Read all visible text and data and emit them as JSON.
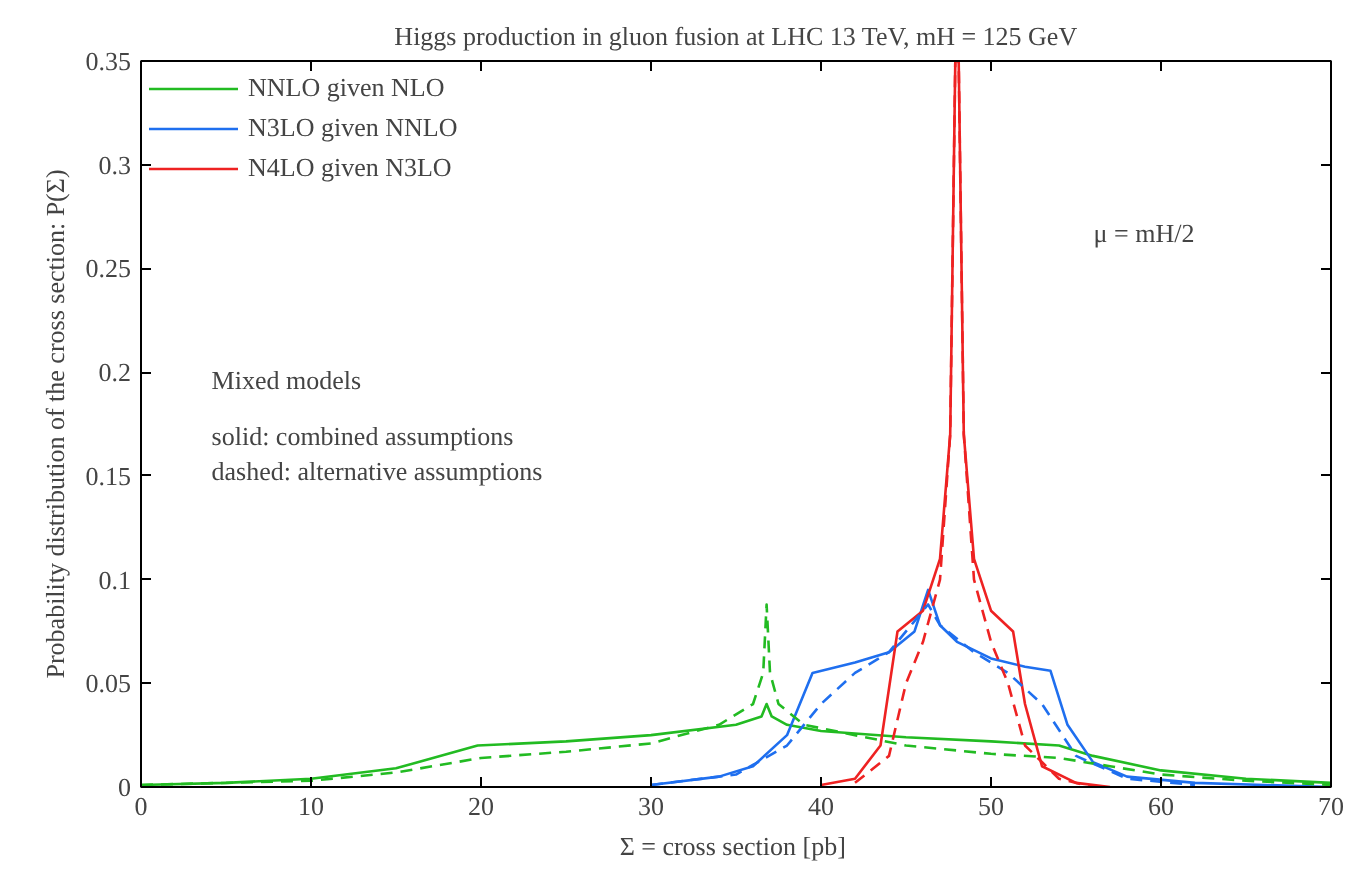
{
  "chart_data": {
    "type": "line",
    "title": "Higgs production in gluon fusion at LHC 13 TeV, mH = 125 GeV",
    "xlabel": "Σ = cross section  [pb]",
    "ylabel": "Probability distribution of the cross section: P(Σ)",
    "xlim": [
      0,
      70
    ],
    "ylim": [
      0,
      0.35
    ],
    "xticks": [
      0,
      10,
      20,
      30,
      40,
      50,
      60,
      70
    ],
    "yticks": [
      0,
      0.05,
      0.1,
      0.15,
      0.2,
      0.25,
      0.3,
      0.35
    ],
    "grid": false,
    "legend": "top left",
    "marker": "none",
    "annotations": [
      "μ = mH/2",
      "Mixed models",
      "solid: combined assumptions",
      "dashed: alternative assumptions"
    ],
    "series": [
      {
        "name": "NNLO given NLO",
        "color": "#22bb22",
        "line_style": "solid",
        "x": [
          0,
          5,
          10,
          15,
          19.8,
          25,
          30,
          35,
          36.5,
          36.8,
          37.1,
          38,
          40,
          45,
          50,
          54,
          56,
          60,
          65,
          70
        ],
        "values": [
          0.001,
          0.002,
          0.004,
          0.009,
          0.02,
          0.022,
          0.025,
          0.03,
          0.034,
          0.04,
          0.034,
          0.03,
          0.027,
          0.024,
          0.022,
          0.02,
          0.015,
          0.008,
          0.004,
          0.002
        ]
      },
      {
        "name": "N3LO given NNLO",
        "color": "#1f6fef",
        "line_style": "solid",
        "x": [
          30,
          34,
          36,
          38,
          39.5,
          42,
          44,
          45.5,
          46.3,
          47,
          48,
          50,
          52,
          53.5,
          54.5,
          56,
          58,
          62,
          70
        ],
        "values": [
          0.001,
          0.005,
          0.01,
          0.025,
          0.055,
          0.06,
          0.065,
          0.075,
          0.095,
          0.078,
          0.07,
          0.062,
          0.058,
          0.056,
          0.03,
          0.012,
          0.005,
          0.002,
          0
        ]
      },
      {
        "name": "N4LO given N3LO",
        "color": "#ee2222",
        "line_style": "solid",
        "x": [
          40,
          42,
          43.5,
          44.5,
          46,
          47,
          47.6,
          47.9,
          48.1,
          48.4,
          49,
          50,
          51.3,
          52,
          53,
          55,
          57
        ],
        "values": [
          0.001,
          0.004,
          0.02,
          0.075,
          0.085,
          0.11,
          0.17,
          0.35,
          0.35,
          0.17,
          0.11,
          0.085,
          0.075,
          0.04,
          0.01,
          0.002,
          0
        ]
      },
      {
        "color": "#22bb22",
        "line_style": "dashed",
        "x": [
          0,
          10,
          15,
          20,
          25,
          30,
          34,
          36,
          36.6,
          36.8,
          37,
          37.5,
          39,
          45,
          50,
          54,
          57,
          60,
          65,
          70
        ],
        "values": [
          0.001,
          0.003,
          0.007,
          0.014,
          0.017,
          0.021,
          0.03,
          0.04,
          0.055,
          0.088,
          0.055,
          0.04,
          0.03,
          0.02,
          0.016,
          0.014,
          0.01,
          0.006,
          0.003,
          0.001
        ]
      },
      {
        "color": "#1f6fef",
        "line_style": "dashed",
        "x": [
          30,
          35,
          38,
          40,
          42,
          44,
          45.5,
          46.3,
          47,
          49,
          51,
          53,
          55,
          58,
          62
        ],
        "values": [
          0.001,
          0.006,
          0.02,
          0.04,
          0.055,
          0.065,
          0.08,
          0.088,
          0.078,
          0.065,
          0.055,
          0.04,
          0.015,
          0.004,
          0.001
        ]
      },
      {
        "color": "#ee2222",
        "line_style": "dashed",
        "x": [
          42,
          44,
          45,
          46,
          47,
          47.6,
          47.9,
          48.1,
          48.4,
          49,
          50,
          51,
          52,
          54,
          56
        ],
        "values": [
          0.002,
          0.015,
          0.05,
          0.07,
          0.1,
          0.17,
          0.35,
          0.35,
          0.17,
          0.1,
          0.07,
          0.05,
          0.02,
          0.004,
          0
        ]
      }
    ]
  }
}
